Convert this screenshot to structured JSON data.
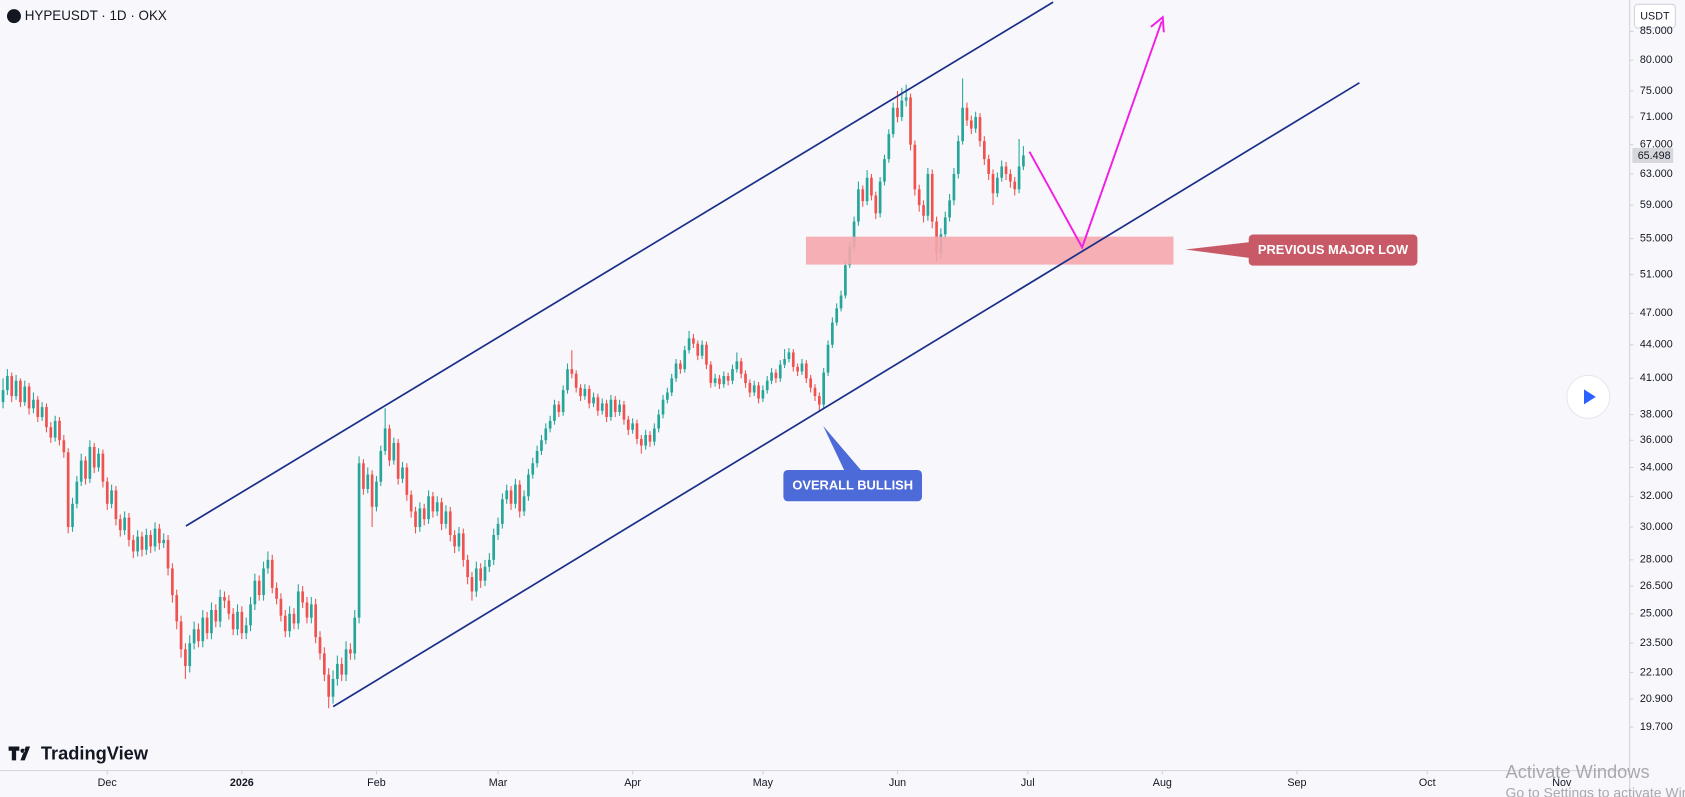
{
  "header": {
    "symbol": "HYPEUSDT · 1D · OKX",
    "currency": "USDT",
    "brand": "TradingView"
  },
  "chart_data": {
    "type": "candlestick",
    "log_scale": true,
    "grid": false,
    "up_color": "#26a69a",
    "down_color": "#ef5350",
    "ylim": [
      18,
      90.8
    ],
    "yticks": [
      {
        "value": 85,
        "label": "85.000"
      },
      {
        "value": 80,
        "label": "80.000"
      },
      {
        "value": 75,
        "label": "75.000"
      },
      {
        "value": 71,
        "label": "71.000"
      },
      {
        "value": 67,
        "label": "67.000"
      },
      {
        "value": 63,
        "label": "63.000"
      },
      {
        "value": 59,
        "label": "59.000"
      },
      {
        "value": 55,
        "label": "55.000"
      },
      {
        "value": 51,
        "label": "51.000"
      },
      {
        "value": 47,
        "label": "47.000"
      },
      {
        "value": 44,
        "label": "44.000"
      },
      {
        "value": 41,
        "label": "41.000"
      },
      {
        "value": 38,
        "label": "38.000"
      },
      {
        "value": 36,
        "label": "36.000"
      },
      {
        "value": 34,
        "label": "34.000"
      },
      {
        "value": 32,
        "label": "32.000"
      },
      {
        "value": 30,
        "label": "30.000"
      },
      {
        "value": 28,
        "label": "28.000"
      },
      {
        "value": 26.5,
        "label": "26.500"
      },
      {
        "value": 25,
        "label": "25.000"
      },
      {
        "value": 23.5,
        "label": "23.500"
      },
      {
        "value": 22.1,
        "label": "22.100"
      },
      {
        "value": 20.9,
        "label": "20.900"
      },
      {
        "value": 19.7,
        "label": "19.700"
      }
    ],
    "xlim": [
      -0.7,
      374.5
    ],
    "xticks": [
      {
        "value": 24,
        "label": "Dec"
      },
      {
        "value": 55,
        "label": "2026"
      },
      {
        "value": 86,
        "label": "Feb"
      },
      {
        "value": 114,
        "label": "Mar"
      },
      {
        "value": 145,
        "label": "Apr"
      },
      {
        "value": 175,
        "label": "May"
      },
      {
        "value": 206,
        "label": "Jun"
      },
      {
        "value": 236,
        "label": "Jul"
      },
      {
        "value": 267,
        "label": "Aug"
      },
      {
        "value": 298,
        "label": "Sep"
      },
      {
        "value": 328,
        "label": "Oct"
      },
      {
        "value": 359,
        "label": "Nov"
      }
    ],
    "last_price": 65.498,
    "annotations": [
      "PREVIOUS MAJOR LOW",
      "OVERALL BULLISH"
    ],
    "candles": [
      [
        39.0,
        41.0,
        38.5,
        40.0
      ],
      [
        40.0,
        41.8,
        39.6,
        41.2
      ],
      [
        41.2,
        41.5,
        39.0,
        39.5
      ],
      [
        39.5,
        41.3,
        39.2,
        40.8
      ],
      [
        40.8,
        41.0,
        38.6,
        39.0
      ],
      [
        39.0,
        40.8,
        38.7,
        40.3
      ],
      [
        40.3,
        40.6,
        38.0,
        38.5
      ],
      [
        38.5,
        39.8,
        38.1,
        39.2
      ],
      [
        39.2,
        39.5,
        37.4,
        37.8
      ],
      [
        37.8,
        39.0,
        37.5,
        38.6
      ],
      [
        38.6,
        38.9,
        36.6,
        37.0
      ],
      [
        37.0,
        37.4,
        35.8,
        36.2
      ],
      [
        36.2,
        37.9,
        35.9,
        37.5
      ],
      [
        37.5,
        37.8,
        35.6,
        36.0
      ],
      [
        36.0,
        36.4,
        34.7,
        35.1
      ],
      [
        35.1,
        35.4,
        29.6,
        30.0
      ],
      [
        30.0,
        31.9,
        29.7,
        31.5
      ],
      [
        31.5,
        33.4,
        31.2,
        33.0
      ],
      [
        33.0,
        35.0,
        32.7,
        34.5
      ],
      [
        34.5,
        34.8,
        32.8,
        33.2
      ],
      [
        33.2,
        36.0,
        32.9,
        35.5
      ],
      [
        35.5,
        35.8,
        33.6,
        34.0
      ],
      [
        34.0,
        35.4,
        33.7,
        35.0
      ],
      [
        35.0,
        35.3,
        32.6,
        33.0
      ],
      [
        33.0,
        33.3,
        31.1,
        31.5
      ],
      [
        31.5,
        32.8,
        31.2,
        32.4
      ],
      [
        32.4,
        32.7,
        30.1,
        30.5
      ],
      [
        30.5,
        30.8,
        29.4,
        29.8
      ],
      [
        29.8,
        31.0,
        29.5,
        30.6
      ],
      [
        30.6,
        30.9,
        28.8,
        29.2
      ],
      [
        29.2,
        29.5,
        28.1,
        28.5
      ],
      [
        28.5,
        29.8,
        28.2,
        29.4
      ],
      [
        29.4,
        29.7,
        28.2,
        28.6
      ],
      [
        28.6,
        29.9,
        28.3,
        29.5
      ],
      [
        29.5,
        29.8,
        28.4,
        28.8
      ],
      [
        28.8,
        30.3,
        28.5,
        29.9
      ],
      [
        29.9,
        30.2,
        28.6,
        29.0
      ],
      [
        29.0,
        29.6,
        28.7,
        29.2
      ],
      [
        29.2,
        29.5,
        27.1,
        27.5
      ],
      [
        27.5,
        27.8,
        25.6,
        26.0
      ],
      [
        26.0,
        26.3,
        24.2,
        24.6
      ],
      [
        24.6,
        24.9,
        22.8,
        23.2
      ],
      [
        23.2,
        23.5,
        21.8,
        22.4
      ],
      [
        22.4,
        23.9,
        22.1,
        23.5
      ],
      [
        23.5,
        24.6,
        23.2,
        24.2
      ],
      [
        24.2,
        24.5,
        23.3,
        23.6
      ],
      [
        23.6,
        25.2,
        23.3,
        24.8
      ],
      [
        24.8,
        25.1,
        23.7,
        24.0
      ],
      [
        24.0,
        25.6,
        23.7,
        25.2
      ],
      [
        25.2,
        25.5,
        24.3,
        24.6
      ],
      [
        24.6,
        26.3,
        24.3,
        25.9
      ],
      [
        25.9,
        26.2,
        25.3,
        25.7
      ],
      [
        25.7,
        26.0,
        24.7,
        25.0
      ],
      [
        25.0,
        25.3,
        23.9,
        24.2
      ],
      [
        24.2,
        25.5,
        23.9,
        25.1
      ],
      [
        25.1,
        25.4,
        23.7,
        24.0
      ],
      [
        24.0,
        24.8,
        23.7,
        24.4
      ],
      [
        24.4,
        25.9,
        24.1,
        25.5
      ],
      [
        25.5,
        27.2,
        25.2,
        26.8
      ],
      [
        26.8,
        27.1,
        25.7,
        26.0
      ],
      [
        26.0,
        27.9,
        25.7,
        27.5
      ],
      [
        27.5,
        28.5,
        27.2,
        28.0
      ],
      [
        28.0,
        28.3,
        26.1,
        26.4
      ],
      [
        26.4,
        26.7,
        25.5,
        25.8
      ],
      [
        25.8,
        26.1,
        24.6,
        24.9
      ],
      [
        24.9,
        25.2,
        23.8,
        24.1
      ],
      [
        24.1,
        25.4,
        23.8,
        25.0
      ],
      [
        25.0,
        25.3,
        24.2,
        24.5
      ],
      [
        24.5,
        26.6,
        24.2,
        26.2
      ],
      [
        26.2,
        26.5,
        25.3,
        25.6
      ],
      [
        25.6,
        25.9,
        24.5,
        24.8
      ],
      [
        24.8,
        25.9,
        24.5,
        25.5
      ],
      [
        25.5,
        25.8,
        23.5,
        23.8
      ],
      [
        23.8,
        24.1,
        22.7,
        23.0
      ],
      [
        23.0,
        23.3,
        21.7,
        22.0
      ],
      [
        22.0,
        22.3,
        20.5,
        21.0
      ],
      [
        21.0,
        22.2,
        20.7,
        21.8
      ],
      [
        21.8,
        22.9,
        21.5,
        22.5
      ],
      [
        22.5,
        22.8,
        21.7,
        22.0
      ],
      [
        22.0,
        23.6,
        21.7,
        23.2
      ],
      [
        23.2,
        23.5,
        22.7,
        23.0
      ],
      [
        23.0,
        25.2,
        22.7,
        24.8
      ],
      [
        24.8,
        34.8,
        24.5,
        34.3
      ],
      [
        34.3,
        34.6,
        32.1,
        32.5
      ],
      [
        32.5,
        34.0,
        32.2,
        33.5
      ],
      [
        33.5,
        33.8,
        30.0,
        31.3
      ],
      [
        31.3,
        33.4,
        31.0,
        33.0
      ],
      [
        33.0,
        35.6,
        32.7,
        35.2
      ],
      [
        35.2,
        38.5,
        34.9,
        36.9
      ],
      [
        36.9,
        37.2,
        34.1,
        34.5
      ],
      [
        34.5,
        36.2,
        34.2,
        35.8
      ],
      [
        35.8,
        36.1,
        32.8,
        33.2
      ],
      [
        33.2,
        34.4,
        32.9,
        34.0
      ],
      [
        34.0,
        34.3,
        31.7,
        32.1
      ],
      [
        32.1,
        32.4,
        30.6,
        31.0
      ],
      [
        31.0,
        31.3,
        29.6,
        30.0
      ],
      [
        30.0,
        31.6,
        29.7,
        31.2
      ],
      [
        31.2,
        31.5,
        30.1,
        30.5
      ],
      [
        30.5,
        32.4,
        30.2,
        32.0
      ],
      [
        32.0,
        32.3,
        30.6,
        31.0
      ],
      [
        31.0,
        32.0,
        30.7,
        31.6
      ],
      [
        31.6,
        31.9,
        29.8,
        30.2
      ],
      [
        30.2,
        31.4,
        29.9,
        31.0
      ],
      [
        31.0,
        31.3,
        29.1,
        29.5
      ],
      [
        29.5,
        29.8,
        28.4,
        28.8
      ],
      [
        28.8,
        30.0,
        28.5,
        29.6
      ],
      [
        29.6,
        29.9,
        27.6,
        28.0
      ],
      [
        28.0,
        28.3,
        26.6,
        27.0
      ],
      [
        27.0,
        27.3,
        25.7,
        26.2
      ],
      [
        26.2,
        27.9,
        25.9,
        27.5
      ],
      [
        27.5,
        27.8,
        26.4,
        26.8
      ],
      [
        26.8,
        28.0,
        26.5,
        27.6
      ],
      [
        27.6,
        28.4,
        27.3,
        28.0
      ],
      [
        28.0,
        29.9,
        27.7,
        29.5
      ],
      [
        29.5,
        30.6,
        29.2,
        30.2
      ],
      [
        30.2,
        32.2,
        29.9,
        31.8
      ],
      [
        31.8,
        32.8,
        31.5,
        32.4
      ],
      [
        32.4,
        32.7,
        31.1,
        31.5
      ],
      [
        31.5,
        33.2,
        31.2,
        32.8
      ],
      [
        32.8,
        33.1,
        30.6,
        31.0
      ],
      [
        31.0,
        32.4,
        30.7,
        32.0
      ],
      [
        32.0,
        33.9,
        31.7,
        33.5
      ],
      [
        33.5,
        34.7,
        33.2,
        34.3
      ],
      [
        34.3,
        35.6,
        34.0,
        35.2
      ],
      [
        35.2,
        36.4,
        34.9,
        36.0
      ],
      [
        36.0,
        37.3,
        35.7,
        36.9
      ],
      [
        36.9,
        37.9,
        36.6,
        37.5
      ],
      [
        37.5,
        39.2,
        37.2,
        38.8
      ],
      [
        38.8,
        39.1,
        37.8,
        38.2
      ],
      [
        38.2,
        40.4,
        37.9,
        40.0
      ],
      [
        40.0,
        42.3,
        39.7,
        41.8
      ],
      [
        41.8,
        43.5,
        41.0,
        41.4
      ],
      [
        41.4,
        41.7,
        39.8,
        40.2
      ],
      [
        40.2,
        40.5,
        39.1,
        39.5
      ],
      [
        39.5,
        40.5,
        39.2,
        40.1
      ],
      [
        40.1,
        40.4,
        38.5,
        38.9
      ],
      [
        38.9,
        39.8,
        38.6,
        39.4
      ],
      [
        39.4,
        39.7,
        37.9,
        38.3
      ],
      [
        38.3,
        39.3,
        38.0,
        38.9
      ],
      [
        38.9,
        39.2,
        37.4,
        37.8
      ],
      [
        37.8,
        39.6,
        37.5,
        39.2
      ],
      [
        39.2,
        39.5,
        37.8,
        38.2
      ],
      [
        38.2,
        39.2,
        37.9,
        38.8
      ],
      [
        38.8,
        39.1,
        37.2,
        37.6
      ],
      [
        37.6,
        37.9,
        36.4,
        36.8
      ],
      [
        36.8,
        37.7,
        36.5,
        37.3
      ],
      [
        37.3,
        37.6,
        35.7,
        36.1
      ],
      [
        36.1,
        36.4,
        35.0,
        35.6
      ],
      [
        35.6,
        36.8,
        35.3,
        36.4
      ],
      [
        36.4,
        36.7,
        35.5,
        35.9
      ],
      [
        35.9,
        37.3,
        35.6,
        36.9
      ],
      [
        36.9,
        38.4,
        36.6,
        38.0
      ],
      [
        38.0,
        39.6,
        37.7,
        39.2
      ],
      [
        39.2,
        40.2,
        38.9,
        39.8
      ],
      [
        39.8,
        41.4,
        39.5,
        41.0
      ],
      [
        41.0,
        42.7,
        40.7,
        42.3
      ],
      [
        42.3,
        42.6,
        41.4,
        41.8
      ],
      [
        41.8,
        43.9,
        41.5,
        43.5
      ],
      [
        43.5,
        45.3,
        43.2,
        44.6
      ],
      [
        44.6,
        45.0,
        43.7,
        44.1
      ],
      [
        44.1,
        44.4,
        42.6,
        43.0
      ],
      [
        43.0,
        44.4,
        42.7,
        44.0
      ],
      [
        44.0,
        44.3,
        41.8,
        42.2
      ],
      [
        42.2,
        42.5,
        40.2,
        40.6
      ],
      [
        40.6,
        41.4,
        40.3,
        41.0
      ],
      [
        41.0,
        41.3,
        40.1,
        40.5
      ],
      [
        40.5,
        41.6,
        40.2,
        41.2
      ],
      [
        41.2,
        41.5,
        40.4,
        40.8
      ],
      [
        40.8,
        42.2,
        40.5,
        41.8
      ],
      [
        41.8,
        43.3,
        41.5,
        42.5
      ],
      [
        42.5,
        42.8,
        41.0,
        41.4
      ],
      [
        41.4,
        41.7,
        40.2,
        40.6
      ],
      [
        40.6,
        40.9,
        39.4,
        39.8
      ],
      [
        39.8,
        40.8,
        39.5,
        40.4
      ],
      [
        40.4,
        40.7,
        38.9,
        39.3
      ],
      [
        39.3,
        40.4,
        39.0,
        40.0
      ],
      [
        40.0,
        41.2,
        39.7,
        40.8
      ],
      [
        40.8,
        41.9,
        40.5,
        41.5
      ],
      [
        41.5,
        41.8,
        40.6,
        41.0
      ],
      [
        41.0,
        42.6,
        40.7,
        42.2
      ],
      [
        42.2,
        43.6,
        41.9,
        42.7
      ],
      [
        42.7,
        43.7,
        42.4,
        43.3
      ],
      [
        43.3,
        43.6,
        41.6,
        42.0
      ],
      [
        42.0,
        42.3,
        41.2,
        41.6
      ],
      [
        41.6,
        42.7,
        41.3,
        42.3
      ],
      [
        42.3,
        42.6,
        40.6,
        41.0
      ],
      [
        41.0,
        41.3,
        39.8,
        40.2
      ],
      [
        40.2,
        40.5,
        39.1,
        39.5
      ],
      [
        39.5,
        39.8,
        38.2,
        38.8
      ],
      [
        38.8,
        41.9,
        38.5,
        41.5
      ],
      [
        41.5,
        44.4,
        41.2,
        44.0
      ],
      [
        44.0,
        46.6,
        43.7,
        46.1
      ],
      [
        46.1,
        48.0,
        45.8,
        47.5
      ],
      [
        47.5,
        49.3,
        47.2,
        48.8
      ],
      [
        48.8,
        52.5,
        48.5,
        52.0
      ],
      [
        52.0,
        54.6,
        51.7,
        54.0
      ],
      [
        54.0,
        57.6,
        53.5,
        57.0
      ],
      [
        57.0,
        62.0,
        56.5,
        61.0
      ],
      [
        61.0,
        61.5,
        58.8,
        59.5
      ],
      [
        59.5,
        63.5,
        59.0,
        62.5
      ],
      [
        62.5,
        63.0,
        59.6,
        60.2
      ],
      [
        60.2,
        60.7,
        57.3,
        58.0
      ],
      [
        58.0,
        62.6,
        57.5,
        62.0
      ],
      [
        62.0,
        65.6,
        61.5,
        65.0
      ],
      [
        65.0,
        69.2,
        64.5,
        68.5
      ],
      [
        68.5,
        73.2,
        68.0,
        72.4
      ],
      [
        72.4,
        75.0,
        70.2,
        71.0
      ],
      [
        71.0,
        75.5,
        70.4,
        73.5
      ],
      [
        73.5,
        76.0,
        72.6,
        74.0
      ],
      [
        74.0,
        74.6,
        66.2,
        67.0
      ],
      [
        67.0,
        67.6,
        60.2,
        61.0
      ],
      [
        61.0,
        61.6,
        58.2,
        59.0
      ],
      [
        59.0,
        59.6,
        56.9,
        57.7
      ],
      [
        57.7,
        63.8,
        57.1,
        63.0
      ],
      [
        63.0,
        63.6,
        56.2,
        57.0
      ],
      [
        57.0,
        57.6,
        52.5,
        53.3
      ],
      [
        53.3,
        56.2,
        52.8,
        55.5
      ],
      [
        55.5,
        58.2,
        55.0,
        57.5
      ],
      [
        57.5,
        60.4,
        57.0,
        59.6
      ],
      [
        59.6,
        63.8,
        59.0,
        63.0
      ],
      [
        63.0,
        68.3,
        62.4,
        67.5
      ],
      [
        67.5,
        77.0,
        67.0,
        72.4
      ],
      [
        72.4,
        73.2,
        69.7,
        70.5
      ],
      [
        70.5,
        71.2,
        68.5,
        69.3
      ],
      [
        69.3,
        71.8,
        68.7,
        71.0
      ],
      [
        71.0,
        71.6,
        66.7,
        67.5
      ],
      [
        67.5,
        68.2,
        64.2,
        65.0
      ],
      [
        65.0,
        65.6,
        62.2,
        63.0
      ],
      [
        63.0,
        63.6,
        59.0,
        60.5
      ],
      [
        60.5,
        63.2,
        60.0,
        62.5
      ],
      [
        62.5,
        64.8,
        62.0,
        64.0
      ],
      [
        64.0,
        64.6,
        62.2,
        63.0
      ],
      [
        63.0,
        63.6,
        61.2,
        62.0
      ],
      [
        62.0,
        62.6,
        60.2,
        61.0
      ],
      [
        61.0,
        67.8,
        60.5,
        64.0
      ],
      [
        64.0,
        66.8,
        63.5,
        65.498
      ]
    ]
  },
  "watermark": {
    "title": "Activate Windows",
    "subtitle": "Go to Settings to activate Windows."
  }
}
